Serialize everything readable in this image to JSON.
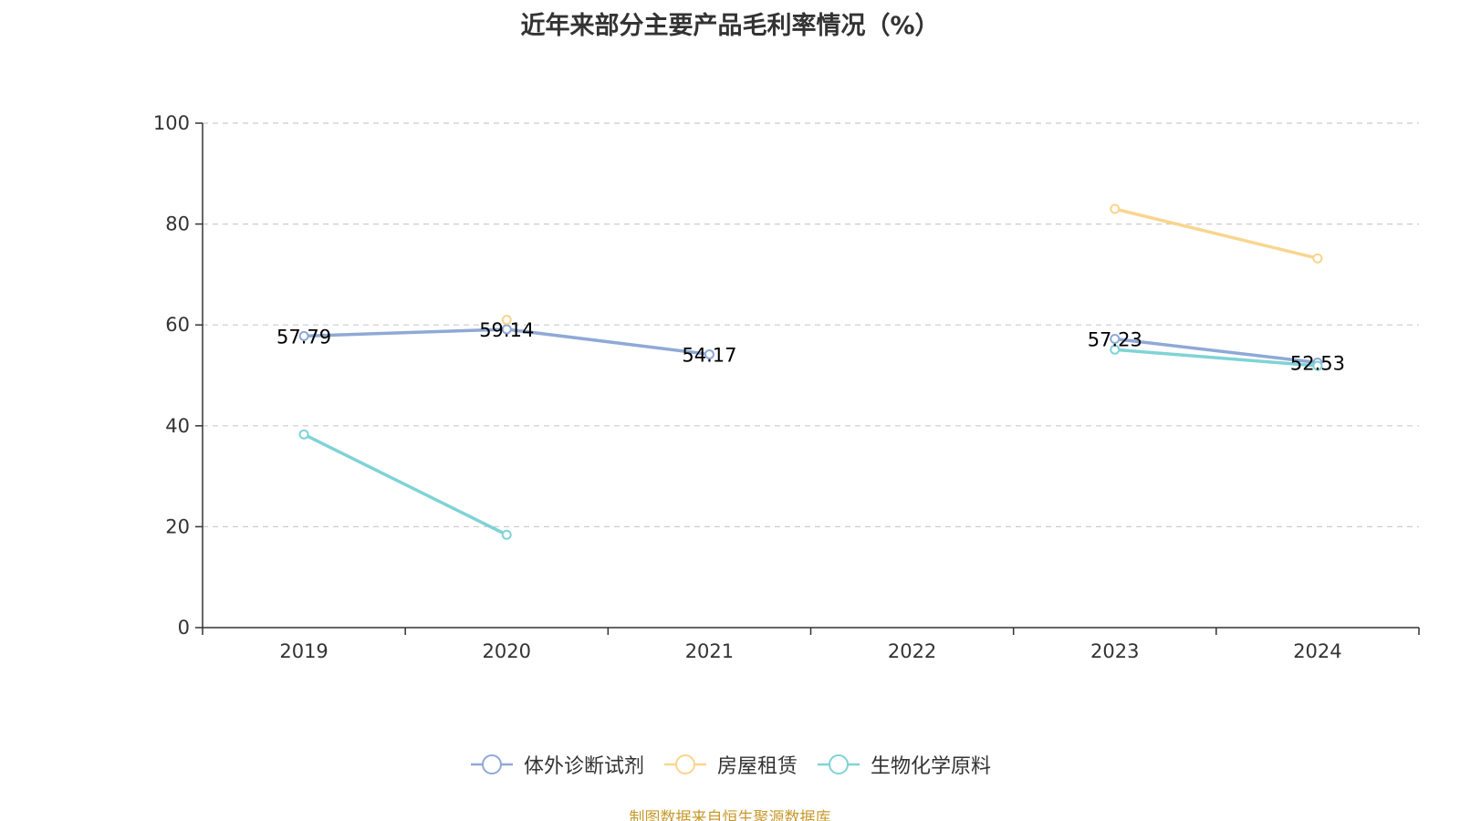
{
  "title": "近年来部分主要产品毛利率情况（%）",
  "source_note": "制图数据来自恒生聚源数据库",
  "chart_data": {
    "type": "line",
    "title": "近年来部分主要产品毛利率情况（%）",
    "categories": [
      "2019",
      "2020",
      "2021",
      "2022",
      "2023",
      "2024"
    ],
    "ylim": [
      0,
      100
    ],
    "yticks": [
      0,
      20,
      40,
      60,
      80,
      100
    ],
    "grid": true,
    "legend_position": "bottom",
    "series": [
      {
        "name": "体外诊断试剂",
        "color": "#8FA9D6",
        "values": [
          57.79,
          59.14,
          54.17,
          null,
          57.23,
          52.53
        ],
        "labels": [
          "57.79",
          "59.14",
          "54.17",
          "",
          "57.23",
          "52.53"
        ]
      },
      {
        "name": "房屋租赁",
        "color": "#F9D58E",
        "values": [
          null,
          61.0,
          null,
          null,
          83.0,
          73.2
        ],
        "labels": [
          "",
          "",
          "",
          "",
          "",
          ""
        ]
      },
      {
        "name": "生物化学原料",
        "color": "#7FD3D6",
        "values": [
          38.3,
          18.4,
          null,
          null,
          55.1,
          51.9
        ],
        "labels": [
          "",
          "",
          "",
          "",
          "",
          ""
        ]
      }
    ]
  }
}
